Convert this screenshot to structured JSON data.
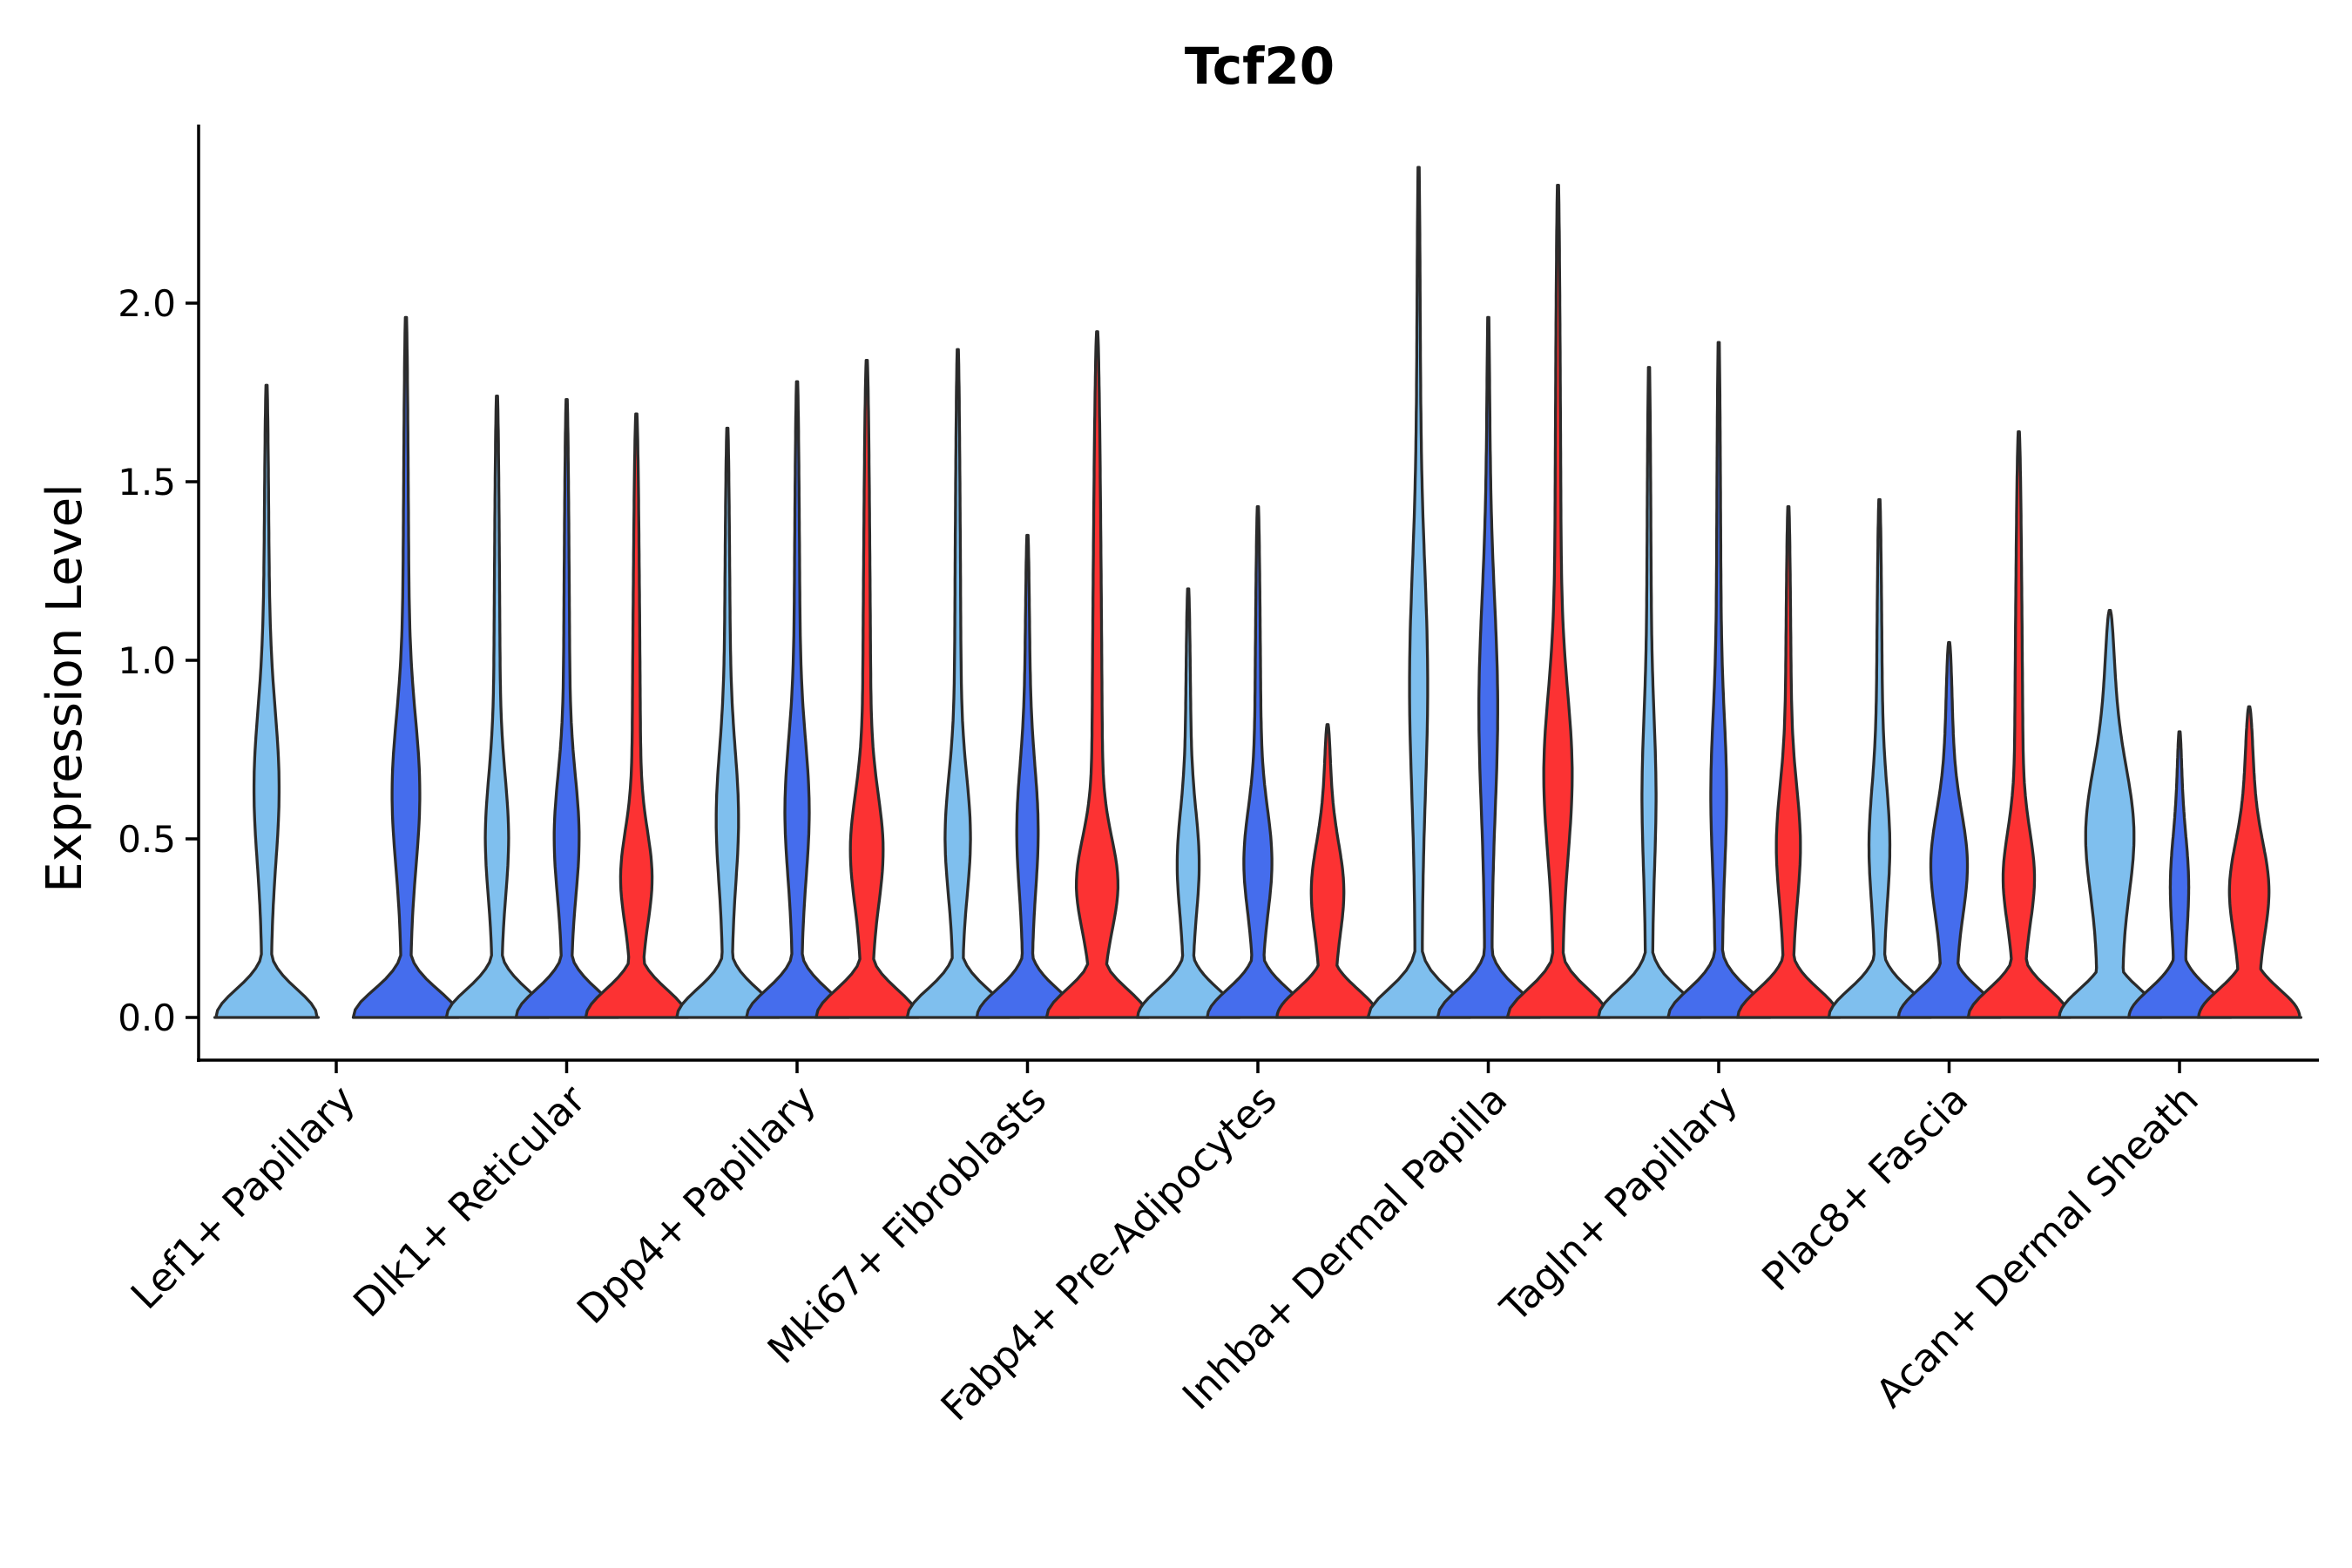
{
  "chart_data": {
    "type": "violin",
    "title": "Tcf20",
    "xlabel": "",
    "ylabel": "Expression Level",
    "ylim": [
      -0.12,
      2.5
    ],
    "yticks": [
      0.0,
      0.5,
      1.0,
      1.5,
      2.0
    ],
    "ytick_labels": [
      "0.0",
      "0.5",
      "1.0",
      "1.5",
      "2.0"
    ],
    "grid": false,
    "legend": "none",
    "conditions": [
      {
        "name": "condition-1",
        "color": "#7fbfee"
      },
      {
        "name": "condition-2",
        "color": "#456ded"
      },
      {
        "name": "condition-3",
        "color": "#fc3233"
      }
    ],
    "categories": [
      "Lef1+ Papillary",
      "Dlk1+ Reticular",
      "Dpp4+ Papillary",
      "Mki67+ Fibroblasts",
      "Fabp4+ Pre-Adipocytes",
      "Inhba+ Dermal Papilla",
      "Tagln+ Papillary",
      "Plac8+ Fascia",
      "Acan+ Dermal Sheath"
    ],
    "violins": [
      [
        {
          "condition": 0,
          "max": 1.77,
          "base_width": 0.48,
          "mode": 0.67,
          "mode_width": 0.11,
          "neck": 0.35,
          "neck_width": 0.04
        },
        null,
        {
          "condition": 1,
          "max": 1.96,
          "base_width": 0.5,
          "mode": 0.65,
          "mode_width": 0.12,
          "neck": 0.35,
          "neck_width": 0.04
        }
      ],
      [
        {
          "condition": 0,
          "max": 1.74,
          "base_width": 0.48,
          "mode": 0.52,
          "mode_width": 0.09,
          "neck": 0.28,
          "neck_width": 0.04
        },
        {
          "condition": 1,
          "max": 1.73,
          "base_width": 0.48,
          "mode": 0.52,
          "mode_width": 0.1,
          "neck": 0.28,
          "neck_width": 0.04
        },
        {
          "condition": 2,
          "max": 1.69,
          "base_width": 0.48,
          "mode": 0.4,
          "mode_width": 0.12,
          "neck": 0.25,
          "neck_width": 0.05
        }
      ],
      [
        {
          "condition": 0,
          "max": 1.65,
          "base_width": 0.48,
          "mode": 0.58,
          "mode_width": 0.09,
          "neck": 0.3,
          "neck_width": 0.04
        },
        {
          "condition": 1,
          "max": 1.78,
          "base_width": 0.48,
          "mode": 0.6,
          "mode_width": 0.1,
          "neck": 0.3,
          "neck_width": 0.04
        },
        {
          "condition": 2,
          "max": 1.84,
          "base_width": 0.48,
          "mode": 0.48,
          "mode_width": 0.13,
          "neck": 0.25,
          "neck_width": 0.05
        }
      ],
      [
        {
          "condition": 0,
          "max": 1.87,
          "base_width": 0.48,
          "mode": 0.52,
          "mode_width": 0.1,
          "neck": 0.3,
          "neck_width": 0.04
        },
        {
          "condition": 1,
          "max": 1.35,
          "base_width": 0.48,
          "mode": 0.55,
          "mode_width": 0.09,
          "neck": 0.28,
          "neck_width": 0.04
        },
        {
          "condition": 2,
          "max": 1.92,
          "base_width": 0.48,
          "mode": 0.38,
          "mode_width": 0.16,
          "neck": 0.25,
          "neck_width": 0.06
        }
      ],
      [
        {
          "condition": 0,
          "max": 1.2,
          "base_width": 0.48,
          "mode": 0.45,
          "mode_width": 0.09,
          "neck": 0.28,
          "neck_width": 0.04
        },
        {
          "condition": 1,
          "max": 1.43,
          "base_width": 0.48,
          "mode": 0.45,
          "mode_width": 0.12,
          "neck": 0.25,
          "neck_width": 0.04
        },
        {
          "condition": 2,
          "max": 0.82,
          "base_width": 0.48,
          "mode": 0.38,
          "mode_width": 0.14,
          "neck": 0.25,
          "neck_width": 0.07
        }
      ],
      [
        {
          "condition": 0,
          "max": 2.38,
          "base_width": 0.48,
          "mode": 0.98,
          "mode_width": 0.08,
          "neck": 0.45,
          "neck_width": 0.03
        },
        {
          "condition": 1,
          "max": 1.96,
          "base_width": 0.48,
          "mode": 0.92,
          "mode_width": 0.09,
          "neck": 0.4,
          "neck_width": 0.03
        },
        {
          "condition": 2,
          "max": 2.33,
          "base_width": 0.48,
          "mode": 0.7,
          "mode_width": 0.12,
          "neck": 0.4,
          "neck_width": 0.04
        }
      ],
      [
        {
          "condition": 0,
          "max": 1.82,
          "base_width": 0.48,
          "mode": 0.65,
          "mode_width": 0.05,
          "neck": 0.3,
          "neck_width": 0.03
        },
        {
          "condition": 1,
          "max": 1.89,
          "base_width": 0.48,
          "mode": 0.65,
          "mode_width": 0.06,
          "neck": 0.3,
          "neck_width": 0.03
        },
        {
          "condition": 2,
          "max": 1.43,
          "base_width": 0.48,
          "mode": 0.5,
          "mode_width": 0.1,
          "neck": 0.25,
          "neck_width": 0.04
        }
      ],
      [
        {
          "condition": 0,
          "max": 1.45,
          "base_width": 0.48,
          "mode": 0.5,
          "mode_width": 0.08,
          "neck": 0.28,
          "neck_width": 0.04
        },
        {
          "condition": 1,
          "max": 1.05,
          "base_width": 0.48,
          "mode": 0.45,
          "mode_width": 0.16,
          "neck": 0.22,
          "neck_width": 0.07
        },
        {
          "condition": 2,
          "max": 1.64,
          "base_width": 0.48,
          "mode": 0.4,
          "mode_width": 0.12,
          "neck": 0.25,
          "neck_width": 0.05
        }
      ],
      [
        {
          "condition": 0,
          "max": 1.14,
          "base_width": 0.48,
          "mode": 0.55,
          "mode_width": 0.2,
          "neck": 0.25,
          "neck_width": 0.12
        },
        {
          "condition": 1,
          "max": 0.8,
          "base_width": 0.48,
          "mode": 0.4,
          "mode_width": 0.07,
          "neck": 0.2,
          "neck_width": 0.05
        },
        {
          "condition": 2,
          "max": 0.87,
          "base_width": 0.48,
          "mode": 0.38,
          "mode_width": 0.16,
          "neck": 0.2,
          "neck_width": 0.09
        }
      ]
    ]
  }
}
